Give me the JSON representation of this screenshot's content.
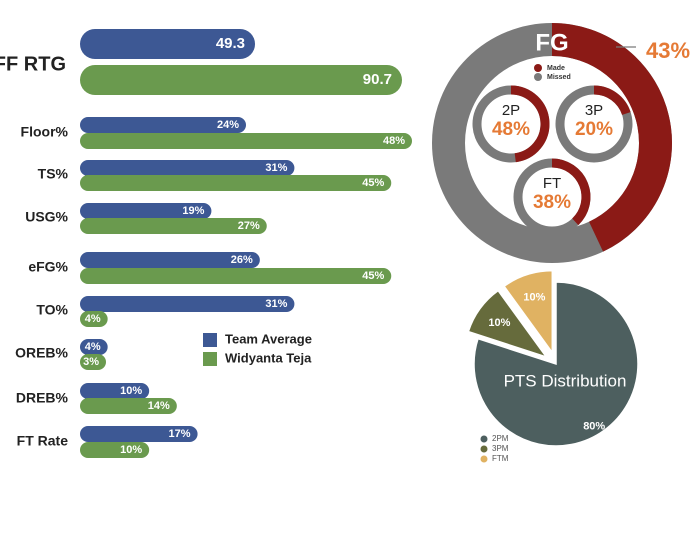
{
  "colors": {
    "team": "#3d5894",
    "player": "#6a9a4e",
    "made": "#8b1a16",
    "missed": "#7a7a7a",
    "accent": "#e57a35",
    "pts_2pm": "#4d5f5f",
    "pts_3pm": "#666b3c",
    "pts_ftm": "#e0b262"
  },
  "chart_data": [
    {
      "type": "bar",
      "orientation": "horizontal",
      "categories": [
        "OFF RTG",
        "Floor%",
        "TS%",
        "USG%",
        "eFG%",
        "TO%",
        "OREB%",
        "DREB%",
        "FT Rate"
      ],
      "series": [
        {
          "name": "Team Average",
          "values": [
            49.3,
            24,
            31,
            19,
            26,
            31,
            4,
            10,
            17
          ],
          "labels": [
            "49.3",
            "24%",
            "31%",
            "19%",
            "26%",
            "31%",
            "4%",
            "10%",
            "17%"
          ]
        },
        {
          "name": "Widyanta Teja",
          "values": [
            90.7,
            48,
            45,
            27,
            45,
            4,
            3,
            14,
            10
          ],
          "labels": [
            "90.7",
            "48%",
            "45%",
            "27%",
            "45%",
            "4%",
            "3%",
            "14%",
            "10%"
          ]
        }
      ]
    },
    {
      "type": "pie",
      "title": "FG",
      "value_label": "43%",
      "made_pct": 43,
      "legend": [
        "Made",
        "Missed"
      ],
      "sub_charts": [
        {
          "title": "2P",
          "label": "48%",
          "made_pct": 48
        },
        {
          "title": "3P",
          "label": "20%",
          "made_pct": 20
        },
        {
          "title": "FT",
          "label": "38%",
          "made_pct": 38
        }
      ]
    },
    {
      "type": "pie",
      "title": "PTS Distribution",
      "slices": [
        {
          "name": "2PM",
          "value": 80,
          "label": "80%"
        },
        {
          "name": "3PM",
          "value": 10,
          "label": "10%"
        },
        {
          "name": "FTM",
          "value": 10,
          "label": "10%"
        }
      ]
    }
  ]
}
